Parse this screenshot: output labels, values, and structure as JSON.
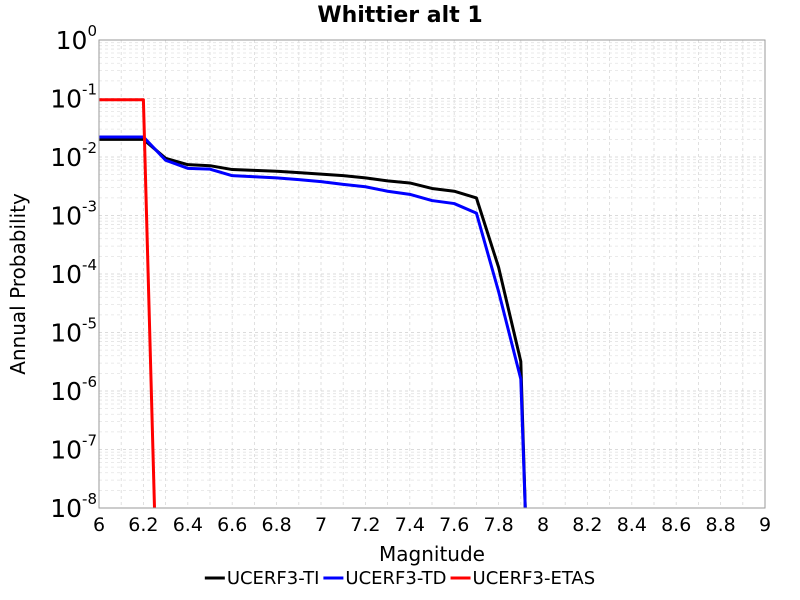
{
  "chart_data": {
    "type": "line",
    "title": "Whittier alt 1",
    "xlabel": "Magnitude",
    "ylabel": "Annual Probability",
    "xlim": [
      6,
      9
    ],
    "ylim": [
      1e-08,
      1
    ],
    "yscale": "log",
    "grid": true,
    "legend_position": "bottom",
    "x_ticks": [
      "6",
      "6.2",
      "6.4",
      "6.6",
      "6.8",
      "7",
      "7.2",
      "7.4",
      "7.6",
      "7.8",
      "8",
      "8.2",
      "8.4",
      "8.6",
      "8.8",
      "9"
    ],
    "y_ticks": [
      {
        "base": "10",
        "exp": "0"
      },
      {
        "base": "10",
        "exp": "-1"
      },
      {
        "base": "10",
        "exp": "-2"
      },
      {
        "base": "10",
        "exp": "-3"
      },
      {
        "base": "10",
        "exp": "-4"
      },
      {
        "base": "10",
        "exp": "-5"
      },
      {
        "base": "10",
        "exp": "-6"
      },
      {
        "base": "10",
        "exp": "-7"
      },
      {
        "base": "10",
        "exp": "-8"
      }
    ],
    "series": [
      {
        "name": "UCERF3-TI",
        "color": "#000000",
        "x": [
          6.0,
          6.2,
          6.3,
          6.4,
          6.5,
          6.6,
          6.7,
          6.8,
          6.9,
          7.0,
          7.1,
          7.2,
          7.3,
          7.4,
          7.5,
          7.6,
          7.7,
          7.8,
          7.9,
          7.92
        ],
        "y": [
          0.02,
          0.02,
          0.0095,
          0.0074,
          0.0071,
          0.0061,
          0.0059,
          0.0057,
          0.0054,
          0.0051,
          0.0048,
          0.0044,
          0.0039,
          0.0036,
          0.0029,
          0.0026,
          0.002,
          0.00013,
          3.2e-06,
          1e-08
        ]
      },
      {
        "name": "UCERF3-TD",
        "color": "#0000ff",
        "x": [
          6.0,
          6.2,
          6.3,
          6.4,
          6.5,
          6.6,
          6.7,
          6.8,
          6.9,
          7.0,
          7.1,
          7.2,
          7.3,
          7.4,
          7.5,
          7.6,
          7.7,
          7.8,
          7.9,
          7.92
        ],
        "y": [
          0.022,
          0.022,
          0.0088,
          0.0064,
          0.0062,
          0.0048,
          0.0046,
          0.0044,
          0.0041,
          0.0038,
          0.0034,
          0.0031,
          0.0026,
          0.0023,
          0.0018,
          0.0016,
          0.0011,
          5e-05,
          1.6e-06,
          1e-08
        ]
      },
      {
        "name": "UCERF3-ETAS",
        "color": "#ff0000",
        "x": [
          6.0,
          6.2,
          6.25
        ],
        "y": [
          0.095,
          0.095,
          1e-08
        ]
      }
    ]
  }
}
